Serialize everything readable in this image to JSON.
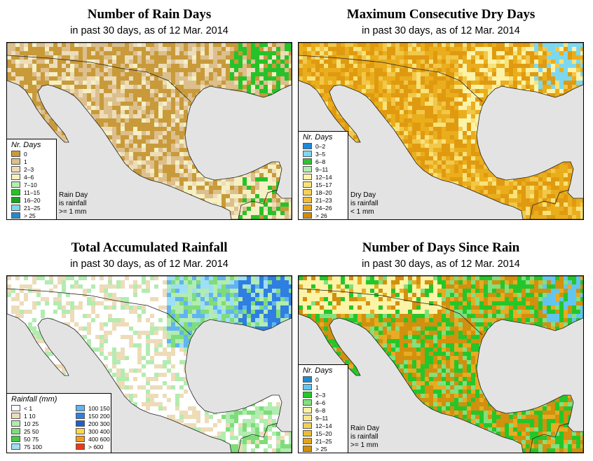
{
  "panels": [
    {
      "id": "rain-days",
      "title": "Number of Rain Days",
      "subtitle": "in past 30 days, as of  12 Mar. 2014",
      "palette": [
        "#c89a3a",
        "#dcbf8c",
        "#eddcb8",
        "#f5f0c4",
        "#b6ecb0",
        "#26c22a",
        "#1aa31d",
        "#7dd8ef",
        "#1e8ad6"
      ],
      "legend": {
        "title": "Nr. Days",
        "items": [
          {
            "label": "0",
            "color": "#c89a3a"
          },
          {
            "label": "1",
            "color": "#dcbf8c"
          },
          {
            "label": "2–3",
            "color": "#eddcb8"
          },
          {
            "label": "4–6",
            "color": "#f5f0c4"
          },
          {
            "label": "7–10",
            "color": "#b6ecb0"
          },
          {
            "label": "11–15",
            "color": "#26c22a"
          },
          {
            "label": "16–20",
            "color": "#1aa31d"
          },
          {
            "label": "21–25",
            "color": "#7dd8ef"
          },
          {
            "label": "> 25",
            "color": "#1e8ad6"
          }
        ],
        "note": [
          "Rain Day",
          "is rainfall",
          ">= 1 mm"
        ]
      }
    },
    {
      "id": "dry-days",
      "title": "Maximum Consecutive Dry Days",
      "subtitle": "in past 30 days, as of  12 Mar. 2014",
      "palette": [
        "#e09a10",
        "#eaae1c",
        "#f2c74a",
        "#f8e27a",
        "#fcf3a8",
        "#b2ecb0",
        "#2fc132",
        "#7dd8ef",
        "#1e8ad6"
      ],
      "legend": {
        "title": "Nr. Days",
        "items": [
          {
            "label": "0–2",
            "color": "#1e8ad6"
          },
          {
            "label": "3–5",
            "color": "#7dd8ef"
          },
          {
            "label": "6–8",
            "color": "#2fc132"
          },
          {
            "label": "9–11",
            "color": "#b2ecb0"
          },
          {
            "label": "12–14",
            "color": "#fcf3a8"
          },
          {
            "label": "15–17",
            "color": "#f8e27a"
          },
          {
            "label": "18–20",
            "color": "#f2d25a"
          },
          {
            "label": "21–23",
            "color": "#eebe38"
          },
          {
            "label": "24–26",
            "color": "#e6a41a"
          },
          {
            "label": "> 26",
            "color": "#d48a06"
          }
        ],
        "note": [
          "Dry Day",
          "is rainfall",
          "< 1 mm"
        ]
      }
    },
    {
      "id": "total-rainfall",
      "title": "Total Accumulated Rainfall",
      "subtitle": "in past 30 days, as of  12 Mar. 2014",
      "palette": [
        "#ffffff",
        "#eddcb8",
        "#b2ecb0",
        "#7edd7a",
        "#45c84a",
        "#9fdff5",
        "#62b4f0",
        "#2f7ee2",
        "#1e5fcf"
      ],
      "legend": {
        "title": "Rainfall (mm)",
        "items": [
          {
            "label": "< 1",
            "color": "#ffffff"
          },
          {
            "label": "1    10",
            "color": "#eddcb8"
          },
          {
            "label": "10    25",
            "color": "#b2ecb0"
          },
          {
            "label": "25    50",
            "color": "#7edd7a"
          },
          {
            "label": "50    75",
            "color": "#45c84a"
          },
          {
            "label": "75   100",
            "color": "#9fdff5"
          },
          {
            "label": "100   150",
            "color": "#62b4f0"
          },
          {
            "label": "150   200",
            "color": "#2f7ee2"
          },
          {
            "label": "200   300",
            "color": "#1e5fcf"
          },
          {
            "label": "300   400",
            "color": "#fcd949"
          },
          {
            "label": "400   600",
            "color": "#f39c1a"
          },
          {
            "label": "> 600",
            "color": "#ee3a12"
          }
        ]
      }
    },
    {
      "id": "days-since-rain",
      "title": "Number of Days Since Rain",
      "subtitle": "in past 30 days, as of  12 Mar. 2014",
      "palette": [
        "#d2900e",
        "#e6ac22",
        "#25c62a",
        "#32c62f",
        "#82e07e",
        "#fbf3a5",
        "#f3d055",
        "#62c5f0",
        "#1e8ad6"
      ],
      "legend": {
        "title": "Nr. Days",
        "items": [
          {
            "label": "0",
            "color": "#1e8ad6"
          },
          {
            "label": "1",
            "color": "#62c5f0"
          },
          {
            "label": "2–3",
            "color": "#25c62a"
          },
          {
            "label": "4–6",
            "color": "#82e07e"
          },
          {
            "label": "6–8",
            "color": "#fbf3a5"
          },
          {
            "label": "9–11",
            "color": "#f8e68a"
          },
          {
            "label": "12–14",
            "color": "#f3d055"
          },
          {
            "label": "15–20",
            "color": "#ebbd34"
          },
          {
            "label": "21–25",
            "color": "#e2a41a"
          },
          {
            "label": "> 25",
            "color": "#d2900e"
          }
        ],
        "note": [
          "Rain Day",
          "is rainfall",
          ">= 1 mm"
        ]
      }
    }
  ]
}
